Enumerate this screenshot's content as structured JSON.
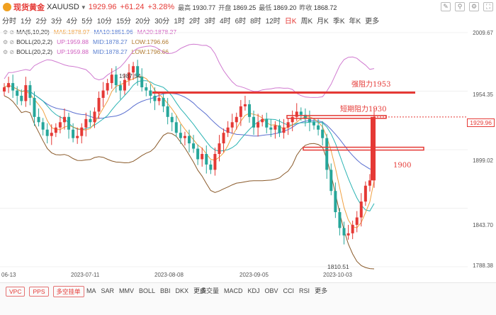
{
  "header": {
    "symbol_cn": "现货黄金",
    "symbol_code": "XAUUSD",
    "price": "1929.96",
    "change": "+61.24",
    "change_pct": "+3.28%",
    "high_label": "最高",
    "high": "1930.77",
    "open_label": "开盘",
    "open": "1869.25",
    "low_label": "最低",
    "low": "1869.20",
    "prev_label": "昨收",
    "prev": "1868.72"
  },
  "periods": [
    "分时",
    "1分",
    "2分",
    "3分",
    "4分",
    "5分",
    "10分",
    "15分",
    "20分",
    "30分",
    "1时",
    "2时",
    "3时",
    "4时",
    "6时",
    "8时",
    "12时",
    "日K",
    "周K",
    "月K",
    "季K",
    "年K",
    "更多"
  ],
  "active_period": "日K",
  "legends": [
    {
      "name": "MA(5,10,20)",
      "a": "MA5:1878.97",
      "b": "MA10:1851.96",
      "c": "MA20:1878.27"
    },
    {
      "name": "BOLL(20,2,2)",
      "a": "UP:1959.88",
      "b": "MID:1878.27",
      "c": "LOW:1796.66"
    },
    {
      "name": "BOLL(20,2,2)",
      "a": "UP:1959.88",
      "b": "MID:1878.27",
      "c": "LOW:1796.66"
    }
  ],
  "price_axis": [
    "2009.67",
    "1954.35",
    "1899.02",
    "1843.70",
    "1788.38"
  ],
  "current_price_tag": "1929.96",
  "date_axis": [
    "06-13",
    "2023-07-11",
    "2023-08-08",
    "2023-09-05",
    "2023-10-03"
  ],
  "annotations": {
    "strong": "强阻力1953",
    "short": "短期阻力1930",
    "support": "1900"
  },
  "marks": {
    "high": "1987.54",
    "low": "1810.51"
  },
  "bottom": {
    "tags": [
      "VPC",
      "PPS",
      "多空挂单"
    ],
    "main_inds": [
      "MA",
      "SAR",
      "MMV",
      "BOLL",
      "BBI",
      "DKX",
      "更多"
    ],
    "sub_inds": [
      "成交量",
      "MACD",
      "KDJ",
      "OBV",
      "CCI",
      "RSI",
      "更多"
    ]
  },
  "colors": {
    "up": "#e53935",
    "down": "#26a69a",
    "ma5": "#f0a040",
    "ma10": "#4a72d0",
    "ma20": "#d060c0",
    "boll_mid": "#5a7fd0",
    "boll_low": "#8a5a2a"
  },
  "chart_data": {
    "type": "candlestick",
    "price_range": [
      1788.38,
      2009.67
    ],
    "resistance_lines": [
      1953,
      1930,
      1900
    ]
  }
}
